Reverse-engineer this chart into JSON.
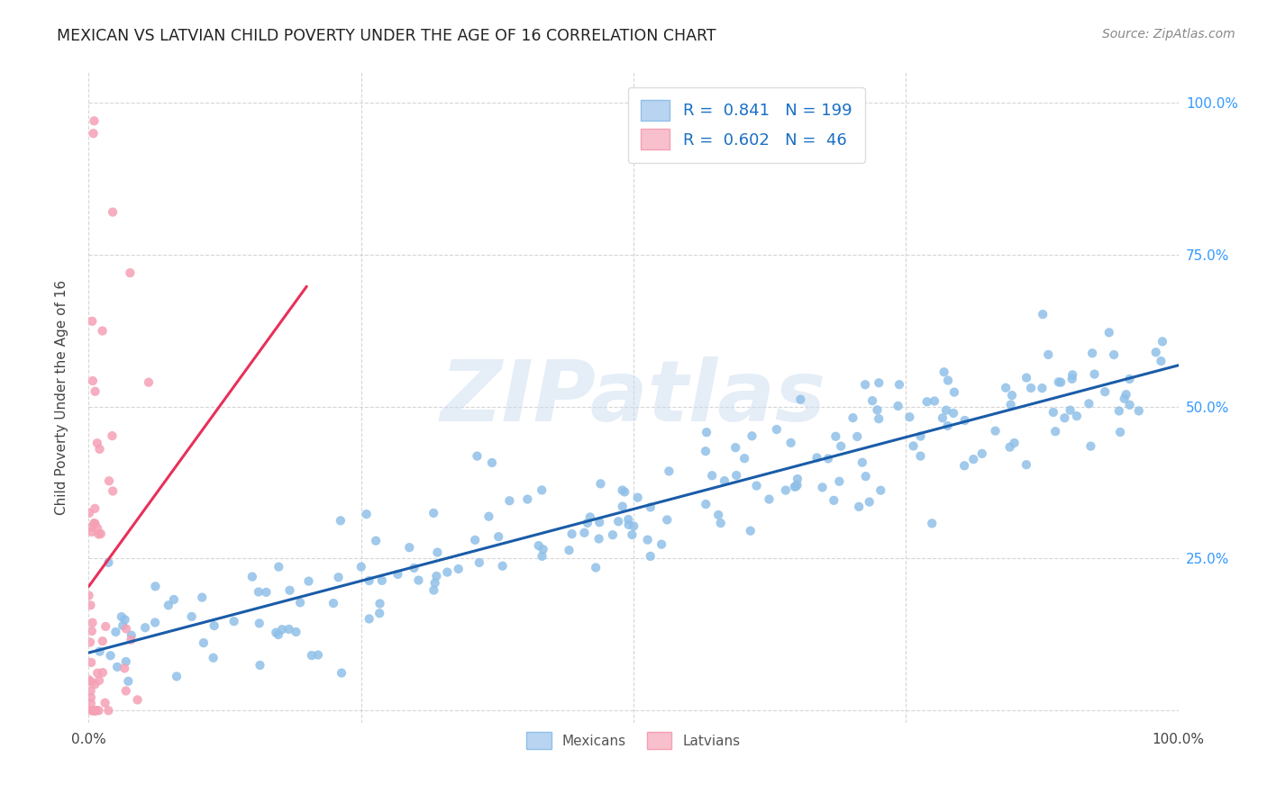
{
  "title": "MEXICAN VS LATVIAN CHILD POVERTY UNDER THE AGE OF 16 CORRELATION CHART",
  "source": "Source: ZipAtlas.com",
  "ylabel": "Child Poverty Under the Age of 16",
  "xlim": [
    0,
    1
  ],
  "ylim": [
    -0.02,
    1.05
  ],
  "xticks": [
    0.0,
    0.25,
    0.5,
    0.75,
    1.0
  ],
  "yticks": [
    0.0,
    0.25,
    0.5,
    0.75,
    1.0
  ],
  "xticklabels": [
    "0.0%",
    "",
    "",
    "",
    "100.0%"
  ],
  "yticklabels_right": [
    "",
    "25.0%",
    "50.0%",
    "75.0%",
    "100.0%"
  ],
  "mexican_color": "#8fc0e8",
  "latvian_color": "#f5a0b5",
  "trendline_mexican_color": "#1a5ca8",
  "trendline_latvian_color": "#e8305a",
  "R_mexican": 0.841,
  "N_mexican": 199,
  "R_latvian": 0.602,
  "N_latvian": 46,
  "legend_color": "#1a6fc4",
  "watermark_text": "ZIPatlas",
  "background_color": "#ffffff",
  "grid_color": "#cccccc"
}
